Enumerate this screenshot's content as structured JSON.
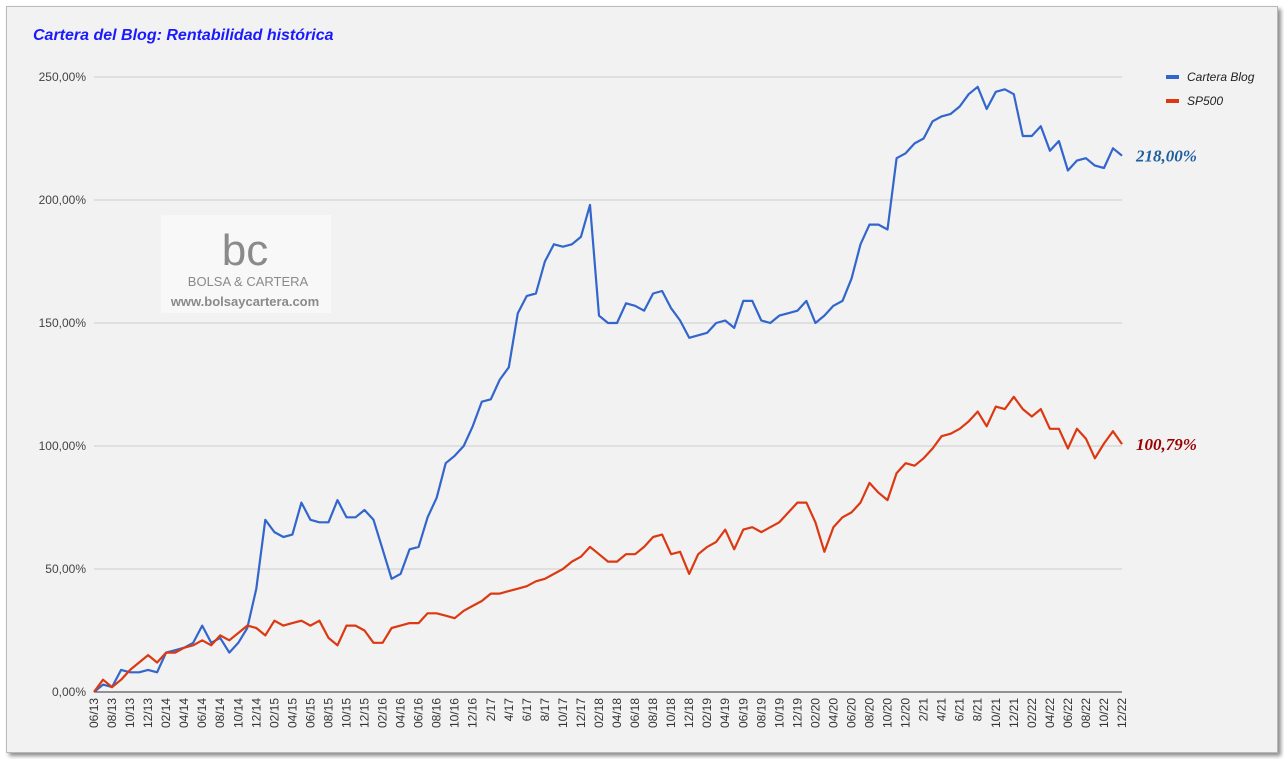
{
  "chart_data": {
    "type": "line",
    "title": "Cartera del Blog: Rentabilidad histórica",
    "title_color": "#1a1aff",
    "xlabel": "",
    "ylabel": "",
    "ylim": [
      0,
      250
    ],
    "y_ticks": [
      "0,00%",
      "50,00%",
      "100,00%",
      "150,00%",
      "200,00%",
      "250,00%"
    ],
    "grid": true,
    "legend_position": "top-right",
    "x_tick_labels": [
      "06/13",
      "08/13",
      "10/13",
      "12/13",
      "02/14",
      "04/14",
      "06/14",
      "08/14",
      "10/14",
      "12/14",
      "02/15",
      "04/15",
      "06/15",
      "08/15",
      "10/15",
      "12/15",
      "02/16",
      "04/16",
      "06/16",
      "08/16",
      "10/16",
      "12/16",
      "2/17",
      "4/17",
      "6/17",
      "8/17",
      "10/17",
      "12/17",
      "02/18",
      "04/18",
      "06/18",
      "08/18",
      "10/18",
      "12/18",
      "02/19",
      "04/19",
      "06/19",
      "08/19",
      "10/19",
      "12/19",
      "02/20",
      "04/20",
      "06/20",
      "08/20",
      "10/20",
      "12/20",
      "2/21",
      "4/21",
      "6/21",
      "8/21",
      "10/21",
      "12/21",
      "02/22",
      "04/22",
      "06/22",
      "08/22",
      "10/22",
      "12/22"
    ],
    "series": [
      {
        "name": "Cartera Blog",
        "color": "#3366cc",
        "end_label": "218,00%",
        "end_label_color": "#1f5f9f",
        "values": [
          0,
          3,
          2,
          9,
          8,
          8,
          9,
          8,
          16,
          17,
          18,
          20,
          27,
          20,
          22,
          16,
          20,
          26,
          42,
          70,
          65,
          63,
          64,
          77,
          70,
          69,
          69,
          78,
          71,
          71,
          74,
          70,
          58,
          46,
          48,
          58,
          59,
          71,
          79,
          93,
          96,
          100,
          108,
          118,
          119,
          127,
          132,
          154,
          161,
          162,
          175,
          182,
          181,
          182,
          185,
          198,
          153,
          150,
          150,
          158,
          157,
          155,
          162,
          163,
          156,
          151,
          144,
          145,
          146,
          150,
          151,
          148,
          159,
          159,
          151,
          150,
          153,
          154,
          155,
          159,
          150,
          153,
          157,
          159,
          168,
          182,
          190,
          190,
          188,
          217,
          219,
          223,
          225,
          232,
          234,
          235,
          238,
          243,
          246,
          237,
          244,
          245,
          243,
          226,
          226,
          230,
          220,
          224,
          212,
          216,
          217,
          214,
          213,
          221,
          218
        ]
      },
      {
        "name": "SP500",
        "color": "#dc3912",
        "end_label": "100,79%",
        "end_label_color": "#990000",
        "values": [
          0,
          5,
          2,
          5,
          9,
          12,
          15,
          12,
          16,
          16,
          18,
          19,
          21,
          19,
          23,
          21,
          24,
          27,
          26,
          23,
          29,
          27,
          28,
          29,
          27,
          29,
          22,
          19,
          27,
          27,
          25,
          20,
          20,
          26,
          27,
          28,
          28,
          32,
          32,
          31,
          30,
          33,
          35,
          37,
          40,
          40,
          41,
          42,
          43,
          45,
          46,
          48,
          50,
          53,
          55,
          59,
          56,
          53,
          53,
          56,
          56,
          59,
          63,
          64,
          56,
          57,
          48,
          56,
          59,
          61,
          66,
          58,
          66,
          67,
          65,
          67,
          69,
          73,
          77,
          77,
          69,
          57,
          67,
          71,
          73,
          77,
          85,
          81,
          78,
          89,
          93,
          92,
          95,
          99,
          104,
          105,
          107,
          110,
          114,
          108,
          116,
          115,
          120,
          115,
          112,
          115,
          107,
          107,
          99,
          107,
          103,
          95,
          101,
          106,
          100.79
        ]
      }
    ]
  },
  "watermark": {
    "logo_text": "bc",
    "brand": "BOLSA & CARTERA",
    "url": "www.bolsaycartera.com"
  }
}
